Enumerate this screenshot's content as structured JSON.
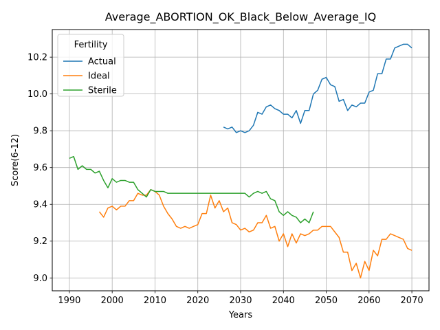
{
  "chart_data": {
    "type": "line",
    "title": "Average_ABORTION_OK_Black_Below_Average_IQ",
    "xlabel": "Years",
    "ylabel": "Score(6-12)",
    "xlim": [
      1986,
      2074
    ],
    "ylim": [
      8.93,
      10.35
    ],
    "xticks": [
      1990,
      2000,
      2010,
      2020,
      2030,
      2040,
      2050,
      2060,
      2070
    ],
    "yticks": [
      9.0,
      9.2,
      9.4,
      9.6,
      9.8,
      10.0,
      10.2
    ],
    "xtick_labels": [
      "1990",
      "2000",
      "2010",
      "2020",
      "2030",
      "2040",
      "2050",
      "2060",
      "2070"
    ],
    "ytick_labels": [
      "9.0",
      "9.2",
      "9.4",
      "9.6",
      "9.8",
      "10.0",
      "10.2"
    ],
    "grid": true,
    "legend": {
      "title": "Fertility",
      "position": "top-left"
    },
    "series": [
      {
        "name": "Actual",
        "color": "#1f77b4",
        "x": [
          2026,
          2027,
          2028,
          2029,
          2030,
          2031,
          2032,
          2033,
          2034,
          2035,
          2036,
          2037,
          2038,
          2039,
          2040,
          2041,
          2042,
          2043,
          2044,
          2045,
          2046,
          2047,
          2048,
          2049,
          2050,
          2051,
          2052,
          2053,
          2054,
          2055,
          2056,
          2057,
          2058,
          2059,
          2060,
          2061,
          2062,
          2063,
          2064,
          2065,
          2066,
          2067,
          2068,
          2069,
          2070
        ],
        "y": [
          9.82,
          9.81,
          9.82,
          9.79,
          9.8,
          9.79,
          9.8,
          9.83,
          9.9,
          9.89,
          9.93,
          9.94,
          9.92,
          9.91,
          9.89,
          9.89,
          9.87,
          9.91,
          9.84,
          9.91,
          9.91,
          10.0,
          10.02,
          10.08,
          10.09,
          10.05,
          10.04,
          9.96,
          9.97,
          9.91,
          9.94,
          9.93,
          9.95,
          9.95,
          10.01,
          10.02,
          10.11,
          10.11,
          10.19,
          10.19,
          10.25,
          10.26,
          10.27,
          10.27,
          10.25
        ]
      },
      {
        "name": "Ideal",
        "color": "#ff7f0e",
        "x": [
          1997,
          1998,
          1999,
          2000,
          2001,
          2002,
          2003,
          2004,
          2005,
          2006,
          2007,
          2008,
          2009,
          2010,
          2011,
          2012,
          2013,
          2014,
          2015,
          2016,
          2017,
          2018,
          2019,
          2020,
          2021,
          2022,
          2023,
          2024,
          2025,
          2026,
          2027,
          2028,
          2029,
          2030,
          2031,
          2032,
          2033,
          2034,
          2035,
          2036,
          2037,
          2038,
          2039,
          2040,
          2041,
          2042,
          2043,
          2044,
          2045,
          2046,
          2047,
          2048,
          2049,
          2050,
          2051,
          2052,
          2053,
          2054,
          2055,
          2056,
          2057,
          2058,
          2059,
          2060,
          2061,
          2062,
          2063,
          2064,
          2065,
          2066,
          2067,
          2068,
          2069,
          2070
        ],
        "y": [
          9.36,
          9.33,
          9.38,
          9.39,
          9.37,
          9.39,
          9.39,
          9.42,
          9.42,
          9.46,
          9.45,
          9.45,
          9.48,
          9.47,
          9.45,
          9.39,
          9.35,
          9.32,
          9.28,
          9.27,
          9.28,
          9.27,
          9.28,
          9.29,
          9.35,
          9.35,
          9.45,
          9.38,
          9.42,
          9.36,
          9.38,
          9.3,
          9.29,
          9.26,
          9.27,
          9.25,
          9.26,
          9.3,
          9.3,
          9.34,
          9.27,
          9.28,
          9.2,
          9.24,
          9.17,
          9.24,
          9.19,
          9.24,
          9.23,
          9.24,
          9.26,
          9.26,
          9.28,
          9.28,
          9.28,
          9.25,
          9.22,
          9.14,
          9.14,
          9.04,
          9.08,
          9.0,
          9.09,
          9.04,
          9.15,
          9.12,
          9.21,
          9.21,
          9.24,
          9.23,
          9.22,
          9.21,
          9.16,
          9.15
        ]
      },
      {
        "name": "Sterile",
        "color": "#2ca02c",
        "x": [
          1990,
          1991,
          1992,
          1993,
          1994,
          1995,
          1996,
          1997,
          1998,
          1999,
          2000,
          2001,
          2002,
          2003,
          2004,
          2005,
          2006,
          2007,
          2008,
          2009,
          2010,
          2011,
          2012,
          2013,
          2014,
          2015,
          2016,
          2017,
          2018,
          2019,
          2020,
          2021,
          2022,
          2023,
          2024,
          2025,
          2026,
          2027,
          2028,
          2029,
          2030,
          2031,
          2032,
          2033,
          2034,
          2035,
          2036,
          2037,
          2038,
          2039,
          2040,
          2041,
          2042,
          2043,
          2044,
          2045,
          2046,
          2047
        ],
        "y": [
          9.65,
          9.66,
          9.59,
          9.61,
          9.59,
          9.59,
          9.57,
          9.58,
          9.53,
          9.49,
          9.54,
          9.52,
          9.53,
          9.53,
          9.52,
          9.52,
          9.48,
          9.46,
          9.44,
          9.48,
          9.47,
          9.47,
          9.47,
          9.46,
          9.46,
          9.46,
          9.46,
          9.46,
          9.46,
          9.46,
          9.46,
          9.46,
          9.46,
          9.46,
          9.46,
          9.46,
          9.46,
          9.46,
          9.46,
          9.46,
          9.46,
          9.46,
          9.44,
          9.46,
          9.47,
          9.46,
          9.47,
          9.43,
          9.42,
          9.36,
          9.34,
          9.36,
          9.34,
          9.33,
          9.3,
          9.32,
          9.3,
          9.36
        ]
      }
    ]
  }
}
